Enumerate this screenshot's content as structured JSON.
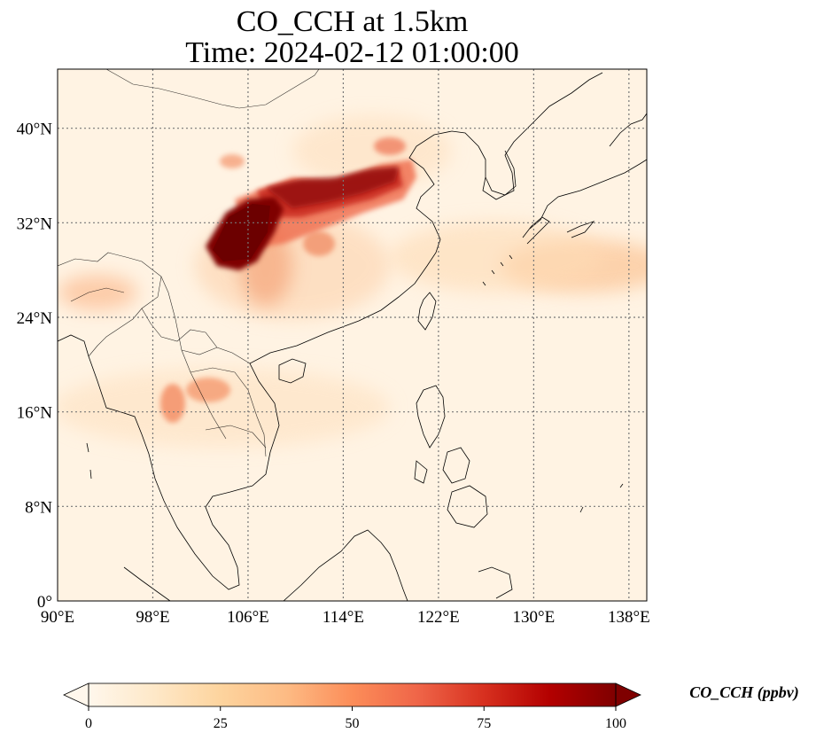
{
  "title": {
    "line1": "CO_CCH at 1.5km",
    "line2": "Time: 2024-02-12 01:00:00"
  },
  "map": {
    "lon_range": [
      90,
      139.5
    ],
    "lat_range": [
      0,
      45
    ],
    "lon_ticks": [
      "90°E",
      "98°E",
      "106°E",
      "114°E",
      "122°E",
      "130°E",
      "138°E"
    ],
    "lat_ticks": [
      "0°",
      "8°N",
      "16°N",
      "24°N",
      "32°N",
      "40°N"
    ],
    "gridlines": true,
    "coastlines": true,
    "borders": true
  },
  "colorbar": {
    "label": "CO_CCH (ppbv)",
    "ticks": [
      "0",
      "25",
      "50",
      "75",
      "100"
    ],
    "range": [
      0,
      100
    ],
    "colormap": [
      "#fff7ec",
      "#fee8c8",
      "#fdd49e",
      "#fdbb84",
      "#fc8d59",
      "#ef6548",
      "#d7301f",
      "#b30000",
      "#7f0000"
    ],
    "extend": "both"
  },
  "chart_data": {
    "type": "heatmap",
    "variable": "CO_CCH",
    "unit": "ppbv",
    "level": "1.5km",
    "time": "2024-02-12 01:00:00",
    "xlim": [
      90,
      139.5
    ],
    "ylim": [
      0,
      45
    ],
    "color_range": [
      0,
      100
    ],
    "features": [
      {
        "lon": 104.3,
        "lat": 30.5,
        "value": 100
      },
      {
        "lon": 106.5,
        "lat": 33.5,
        "value": 100
      },
      {
        "lon": 110.5,
        "lat": 34.8,
        "value": 90
      },
      {
        "lon": 115.5,
        "lat": 35.8,
        "value": 85
      },
      {
        "lon": 117.5,
        "lat": 36.3,
        "value": 75
      },
      {
        "lon": 111.5,
        "lat": 31.0,
        "value": 50
      },
      {
        "lon": 108.0,
        "lat": 27.5,
        "value": 40
      },
      {
        "lon": 103.5,
        "lat": 18.5,
        "value": 45
      },
      {
        "lon": 101.0,
        "lat": 17.0,
        "value": 42
      },
      {
        "lon": 97.0,
        "lat": 26.0,
        "value": 35
      },
      {
        "lon": 94.0,
        "lat": 27.0,
        "value": 30
      },
      {
        "lon": 106.0,
        "lat": 37.0,
        "value": 35
      },
      {
        "lon": 128.0,
        "lat": 28.0,
        "value": 25
      },
      {
        "lon": 136.0,
        "lat": 28.0,
        "value": 35
      },
      {
        "lon": 120.0,
        "lat": 20.0,
        "value": 15
      },
      {
        "lon": 115.0,
        "lat": 10.0,
        "value": 10
      }
    ]
  }
}
